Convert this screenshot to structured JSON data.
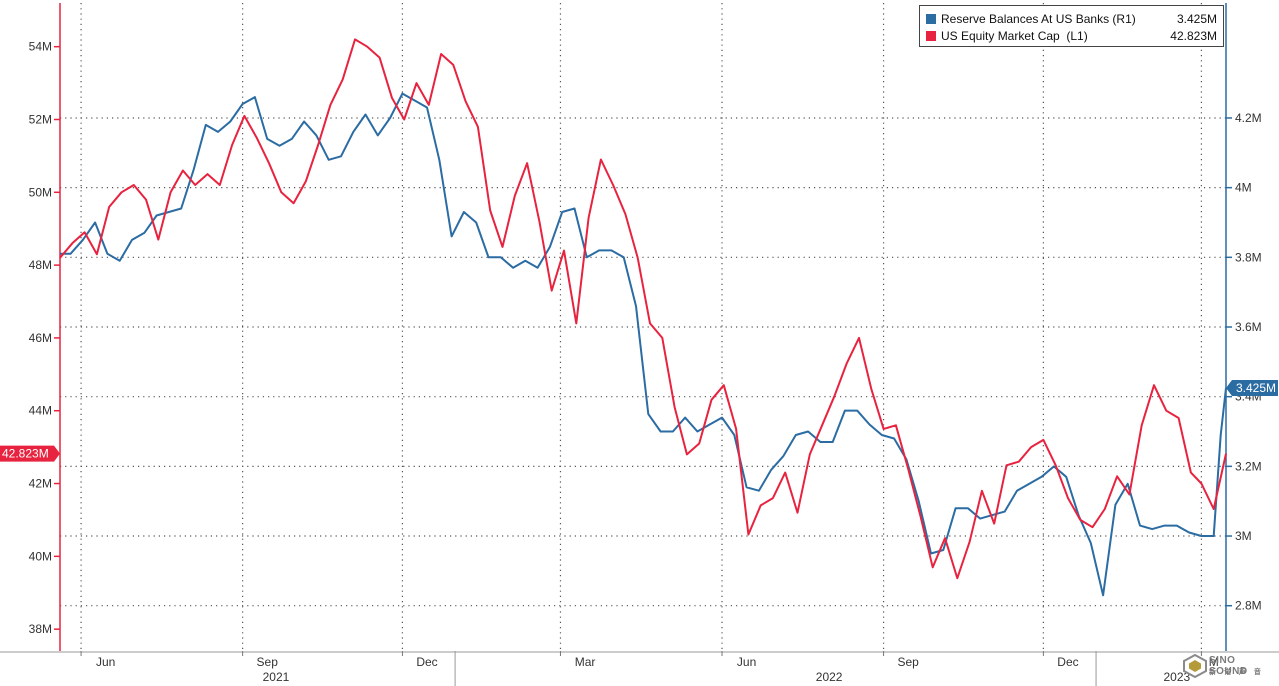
{
  "chart_data": {
    "type": "line",
    "title": "",
    "xlabel": "",
    "legend_position": "top-right",
    "grid": true,
    "left_axis": {
      "ylim": [
        37.4,
        55.2
      ],
      "ticks": [
        "38M",
        "40M",
        "42M",
        "44M",
        "46M",
        "48M",
        "50M",
        "52M",
        "54M"
      ],
      "tick_values": [
        38,
        40,
        42,
        44,
        46,
        48,
        50,
        52,
        54
      ],
      "last_value_label": "42.823M",
      "color": "#e8233f"
    },
    "right_axis": {
      "ylim": [
        2.67,
        4.53
      ],
      "ticks": [
        "2.8M",
        "3M",
        "3.2M",
        "3.4M",
        "3.6M",
        "3.8M",
        "4M",
        "4.2M"
      ],
      "tick_values": [
        2.8,
        3.0,
        3.2,
        3.4,
        3.6,
        3.8,
        4.0,
        4.2
      ],
      "last_value_label": "3.425M",
      "color": "#2b6ca3"
    },
    "x_axis": {
      "start": "2021-05-20",
      "end": "2023-03-15",
      "month_labels": [
        {
          "label": "Jun",
          "date": "2021-06-15"
        },
        {
          "label": "Sep",
          "date": "2021-09-15"
        },
        {
          "label": "Dec",
          "date": "2021-12-15"
        },
        {
          "label": "Mar",
          "date": "2022-03-15"
        },
        {
          "label": "Jun",
          "date": "2022-06-15"
        },
        {
          "label": "Sep",
          "date": "2022-09-15"
        },
        {
          "label": "Dec",
          "date": "2022-12-15"
        },
        {
          "label": "M",
          "date": "2023-03-08"
        }
      ],
      "year_labels": [
        {
          "label": "2021",
          "date": "2021-09-20"
        },
        {
          "label": "2022",
          "date": "2022-08-01"
        },
        {
          "label": "2023",
          "date": "2023-02-15"
        }
      ],
      "grid_dates": [
        "2021-06-01",
        "2021-09-01",
        "2021-12-01",
        "2022-03-01",
        "2022-06-01",
        "2022-09-01",
        "2022-12-01",
        "2023-03-01"
      ],
      "year_dividers": [
        "2021-12-31",
        "2022-12-31"
      ]
    },
    "series": [
      {
        "name": "Reserve Balances At US Banks (R1)",
        "legend_value": "3.425M",
        "axis": "right",
        "color": "#2b6ca3",
        "points": [
          [
            "2021-05-20",
            3.81
          ],
          [
            "2021-05-26",
            3.81
          ],
          [
            "2021-06-02",
            3.85
          ],
          [
            "2021-06-09",
            3.9
          ],
          [
            "2021-06-16",
            3.81
          ],
          [
            "2021-06-23",
            3.79
          ],
          [
            "2021-06-30",
            3.85
          ],
          [
            "2021-07-07",
            3.87
          ],
          [
            "2021-07-14",
            3.92
          ],
          [
            "2021-07-21",
            3.93
          ],
          [
            "2021-07-28",
            3.94
          ],
          [
            "2021-08-04",
            4.05
          ],
          [
            "2021-08-11",
            4.18
          ],
          [
            "2021-08-18",
            4.16
          ],
          [
            "2021-08-25",
            4.19
          ],
          [
            "2021-09-01",
            4.24
          ],
          [
            "2021-09-08",
            4.26
          ],
          [
            "2021-09-15",
            4.14
          ],
          [
            "2021-09-22",
            4.12
          ],
          [
            "2021-09-29",
            4.14
          ],
          [
            "2021-10-06",
            4.19
          ],
          [
            "2021-10-13",
            4.15
          ],
          [
            "2021-10-20",
            4.08
          ],
          [
            "2021-10-27",
            4.09
          ],
          [
            "2021-11-03",
            4.16
          ],
          [
            "2021-11-10",
            4.21
          ],
          [
            "2021-11-17",
            4.15
          ],
          [
            "2021-11-24",
            4.2
          ],
          [
            "2021-12-01",
            4.27
          ],
          [
            "2021-12-08",
            4.25
          ],
          [
            "2021-12-15",
            4.23
          ],
          [
            "2021-12-22",
            4.08
          ],
          [
            "2021-12-29",
            3.86
          ],
          [
            "2022-01-05",
            3.93
          ],
          [
            "2022-01-12",
            3.9
          ],
          [
            "2022-01-19",
            3.8
          ],
          [
            "2022-01-26",
            3.8
          ],
          [
            "2022-02-02",
            3.77
          ],
          [
            "2022-02-09",
            3.79
          ],
          [
            "2022-02-16",
            3.77
          ],
          [
            "2022-02-23",
            3.83
          ],
          [
            "2022-03-02",
            3.93
          ],
          [
            "2022-03-09",
            3.94
          ],
          [
            "2022-03-16",
            3.8
          ],
          [
            "2022-03-23",
            3.82
          ],
          [
            "2022-03-30",
            3.82
          ],
          [
            "2022-04-06",
            3.8
          ],
          [
            "2022-04-13",
            3.66
          ],
          [
            "2022-04-20",
            3.35
          ],
          [
            "2022-04-27",
            3.3
          ],
          [
            "2022-05-04",
            3.3
          ],
          [
            "2022-05-11",
            3.34
          ],
          [
            "2022-05-18",
            3.3
          ],
          [
            "2022-05-25",
            3.32
          ],
          [
            "2022-06-01",
            3.34
          ],
          [
            "2022-06-08",
            3.29
          ],
          [
            "2022-06-15",
            3.14
          ],
          [
            "2022-06-22",
            3.13
          ],
          [
            "2022-06-29",
            3.19
          ],
          [
            "2022-07-06",
            3.23
          ],
          [
            "2022-07-13",
            3.29
          ],
          [
            "2022-07-20",
            3.3
          ],
          [
            "2022-07-27",
            3.27
          ],
          [
            "2022-08-03",
            3.27
          ],
          [
            "2022-08-10",
            3.36
          ],
          [
            "2022-08-17",
            3.36
          ],
          [
            "2022-08-24",
            3.32
          ],
          [
            "2022-08-31",
            3.29
          ],
          [
            "2022-09-07",
            3.28
          ],
          [
            "2022-09-14",
            3.22
          ],
          [
            "2022-09-21",
            3.1
          ],
          [
            "2022-09-28",
            2.95
          ],
          [
            "2022-10-05",
            2.96
          ],
          [
            "2022-10-12",
            3.08
          ],
          [
            "2022-10-19",
            3.08
          ],
          [
            "2022-10-26",
            3.05
          ],
          [
            "2022-11-02",
            3.06
          ],
          [
            "2022-11-09",
            3.07
          ],
          [
            "2022-11-16",
            3.13
          ],
          [
            "2022-11-23",
            3.15
          ],
          [
            "2022-11-30",
            3.17
          ],
          [
            "2022-12-07",
            3.2
          ],
          [
            "2022-12-14",
            3.17
          ],
          [
            "2022-12-21",
            3.06
          ],
          [
            "2022-12-28",
            2.98
          ],
          [
            "2023-01-04",
            2.83
          ],
          [
            "2023-01-11",
            3.09
          ],
          [
            "2023-01-18",
            3.15
          ],
          [
            "2023-01-25",
            3.03
          ],
          [
            "2023-02-01",
            3.02
          ],
          [
            "2023-02-08",
            3.03
          ],
          [
            "2023-02-15",
            3.03
          ],
          [
            "2023-02-22",
            3.01
          ],
          [
            "2023-03-01",
            3.0
          ],
          [
            "2023-03-08",
            3.0
          ],
          [
            "2023-03-12",
            3.29
          ],
          [
            "2023-03-15",
            3.425
          ]
        ]
      },
      {
        "name": "US Equity Market Cap  (L1)",
        "legend_value": "42.823M",
        "axis": "left",
        "color": "#e8233f",
        "points": [
          [
            "2021-05-20",
            48.2
          ],
          [
            "2021-05-27",
            48.6
          ],
          [
            "2021-06-03",
            48.9
          ],
          [
            "2021-06-10",
            48.3
          ],
          [
            "2021-06-17",
            49.6
          ],
          [
            "2021-06-24",
            50.0
          ],
          [
            "2021-07-01",
            50.2
          ],
          [
            "2021-07-08",
            49.8
          ],
          [
            "2021-07-15",
            48.7
          ],
          [
            "2021-07-22",
            50.0
          ],
          [
            "2021-07-29",
            50.6
          ],
          [
            "2021-08-05",
            50.2
          ],
          [
            "2021-08-12",
            50.5
          ],
          [
            "2021-08-19",
            50.2
          ],
          [
            "2021-08-26",
            51.3
          ],
          [
            "2021-09-02",
            52.1
          ],
          [
            "2021-09-09",
            51.5
          ],
          [
            "2021-09-16",
            50.8
          ],
          [
            "2021-09-23",
            50.0
          ],
          [
            "2021-09-30",
            49.7
          ],
          [
            "2021-10-07",
            50.3
          ],
          [
            "2021-10-14",
            51.3
          ],
          [
            "2021-10-21",
            52.4
          ],
          [
            "2021-10-28",
            53.1
          ],
          [
            "2021-11-04",
            54.2
          ],
          [
            "2021-11-11",
            54.0
          ],
          [
            "2021-11-18",
            53.7
          ],
          [
            "2021-11-25",
            52.6
          ],
          [
            "2021-12-02",
            52.0
          ],
          [
            "2021-12-09",
            53.0
          ],
          [
            "2021-12-16",
            52.4
          ],
          [
            "2021-12-23",
            53.8
          ],
          [
            "2021-12-30",
            53.5
          ],
          [
            "2022-01-06",
            52.5
          ],
          [
            "2022-01-13",
            51.8
          ],
          [
            "2022-01-20",
            49.5
          ],
          [
            "2022-01-27",
            48.5
          ],
          [
            "2022-02-03",
            49.9
          ],
          [
            "2022-02-10",
            50.8
          ],
          [
            "2022-02-17",
            49.2
          ],
          [
            "2022-02-24",
            47.3
          ],
          [
            "2022-03-03",
            48.4
          ],
          [
            "2022-03-10",
            46.4
          ],
          [
            "2022-03-17",
            49.3
          ],
          [
            "2022-03-24",
            50.9
          ],
          [
            "2022-03-31",
            50.2
          ],
          [
            "2022-04-07",
            49.4
          ],
          [
            "2022-04-14",
            48.2
          ],
          [
            "2022-04-21",
            46.4
          ],
          [
            "2022-04-28",
            46.0
          ],
          [
            "2022-05-05",
            44.1
          ],
          [
            "2022-05-12",
            42.8
          ],
          [
            "2022-05-19",
            43.1
          ],
          [
            "2022-05-26",
            44.3
          ],
          [
            "2022-06-02",
            44.7
          ],
          [
            "2022-06-09",
            43.5
          ],
          [
            "2022-06-16",
            40.6
          ],
          [
            "2022-06-23",
            41.4
          ],
          [
            "2022-06-30",
            41.6
          ],
          [
            "2022-07-07",
            42.3
          ],
          [
            "2022-07-14",
            41.2
          ],
          [
            "2022-07-21",
            42.8
          ],
          [
            "2022-07-28",
            43.6
          ],
          [
            "2022-08-04",
            44.4
          ],
          [
            "2022-08-11",
            45.3
          ],
          [
            "2022-08-18",
            46.0
          ],
          [
            "2022-08-25",
            44.6
          ],
          [
            "2022-09-01",
            43.5
          ],
          [
            "2022-09-08",
            43.6
          ],
          [
            "2022-09-15",
            42.4
          ],
          [
            "2022-09-22",
            41.1
          ],
          [
            "2022-09-29",
            39.7
          ],
          [
            "2022-10-06",
            40.5
          ],
          [
            "2022-10-13",
            39.4
          ],
          [
            "2022-10-20",
            40.4
          ],
          [
            "2022-10-27",
            41.8
          ],
          [
            "2022-11-03",
            40.9
          ],
          [
            "2022-11-10",
            42.5
          ],
          [
            "2022-11-17",
            42.6
          ],
          [
            "2022-11-24",
            43.0
          ],
          [
            "2022-12-01",
            43.2
          ],
          [
            "2022-12-08",
            42.5
          ],
          [
            "2022-12-15",
            41.6
          ],
          [
            "2022-12-22",
            41.0
          ],
          [
            "2022-12-29",
            40.8
          ],
          [
            "2023-01-05",
            41.3
          ],
          [
            "2023-01-12",
            42.2
          ],
          [
            "2023-01-19",
            41.7
          ],
          [
            "2023-01-26",
            43.6
          ],
          [
            "2023-02-02",
            44.7
          ],
          [
            "2023-02-09",
            44.0
          ],
          [
            "2023-02-16",
            43.8
          ],
          [
            "2023-02-23",
            42.3
          ],
          [
            "2023-03-01",
            42.0
          ],
          [
            "2023-03-08",
            41.3
          ],
          [
            "2023-03-15",
            42.823
          ]
        ]
      }
    ]
  },
  "watermark": {
    "text": "SINO SOUND",
    "subtext": "新 诺 声 音"
  }
}
